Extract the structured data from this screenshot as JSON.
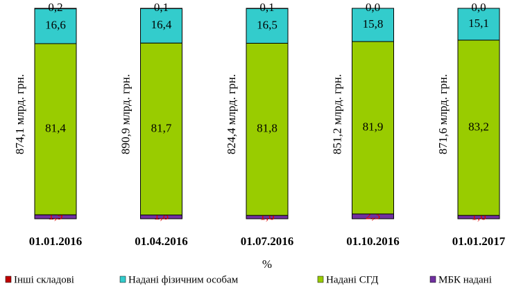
{
  "chart_data": {
    "type": "stacked_bar",
    "categories": [
      "01.01.2016",
      "01.04.2016",
      "01.07.2016",
      "01.10.2016",
      "01.01.2017"
    ],
    "series": [
      {
        "name": "Інші складові",
        "color": "#c00000",
        "values": [
          0.2,
          0.1,
          0.1,
          0.0,
          0.0
        ],
        "value_labels": [
          "0,2",
          "0,1",
          "0,1",
          "0,0",
          "0,0"
        ]
      },
      {
        "name": "Надані фізичним особам",
        "color": "#33cccc",
        "values": [
          16.6,
          16.4,
          16.5,
          15.8,
          15.1
        ],
        "value_labels": [
          "16,6",
          "16,4",
          "16,5",
          "15,8",
          "15,1"
        ]
      },
      {
        "name": "Надані СГД",
        "color": "#99cc00",
        "values": [
          81.4,
          81.7,
          81.8,
          81.9,
          83.2
        ],
        "value_labels": [
          "81,4",
          "81,7",
          "81,8",
          "81,9",
          "83,2"
        ]
      },
      {
        "name": "МБК надані",
        "color": "#7030a0",
        "values": [
          1.9,
          1.8,
          1.6,
          2.3,
          1.6
        ],
        "value_labels": [
          "1,9",
          "1,8",
          "1,6",
          "2,3",
          "1,6"
        ]
      }
    ],
    "annotations": [
      "874,1 млрд. грн.",
      "890,9 млрд. грн.",
      "824,4 млрд. грн.",
      "851,2 млрд. грн.",
      "871,6 млрд. грн."
    ],
    "x_label": "%"
  }
}
